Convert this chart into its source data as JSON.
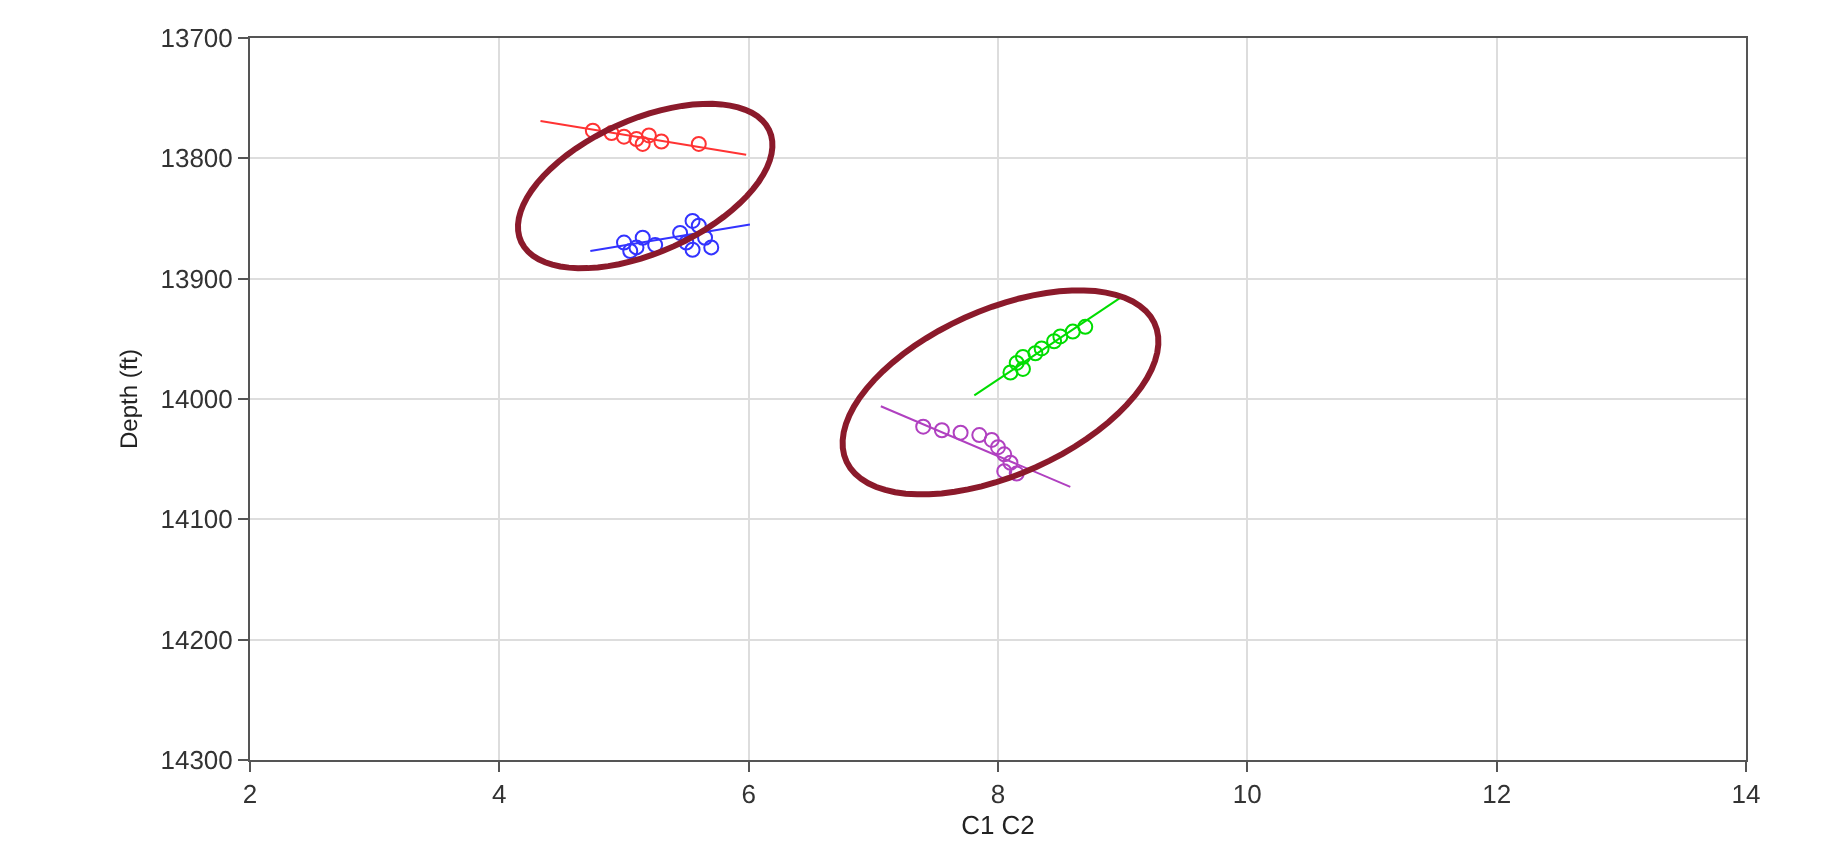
{
  "chart_data": {
    "type": "scatter",
    "xlabel": "C1 C2",
    "ylabel": "Depth (ft)",
    "xlim": [
      2,
      14
    ],
    "xticks": [
      2,
      4,
      6,
      8,
      10,
      12,
      14
    ],
    "ylim": [
      14300,
      13700
    ],
    "yticks": [
      13700,
      13800,
      13900,
      14000,
      14100,
      14200,
      14300
    ],
    "grid": true,
    "series": [
      {
        "marker": "circle",
        "color": "#ff3333",
        "x": [
          4.75,
          4.9,
          5.0,
          5.1,
          5.2,
          5.3,
          5.15,
          5.6
        ],
        "values": [
          13777,
          13779,
          13782,
          13784,
          13781,
          13786,
          13788,
          13788
        ]
      },
      {
        "marker": "circle",
        "color": "#3333ff",
        "x": [
          5.0,
          5.05,
          5.15,
          5.25,
          5.1,
          5.45,
          5.5,
          5.55,
          5.6,
          5.65,
          5.7,
          5.55
        ],
        "values": [
          13870,
          13877,
          13866,
          13872,
          13874,
          13862,
          13870,
          13852,
          13856,
          13866,
          13874,
          13876
        ]
      },
      {
        "marker": "circle",
        "color": "#00dd00",
        "x": [
          8.1,
          8.15,
          8.2,
          8.3,
          8.35,
          8.45,
          8.5,
          8.6,
          8.7,
          8.2
        ],
        "values": [
          13978,
          13970,
          13965,
          13962,
          13958,
          13952,
          13948,
          13944,
          13940,
          13975
        ]
      },
      {
        "marker": "circle",
        "color": "#b040c0",
        "x": [
          7.4,
          7.55,
          7.7,
          7.85,
          7.95,
          8.0,
          8.05,
          8.1,
          8.05,
          8.15
        ],
        "values": [
          14023,
          14026,
          14028,
          14030,
          14034,
          14040,
          14046,
          14053,
          14060,
          14062
        ]
      },
      {
        "type": "line",
        "marker": "none",
        "color": "#ff3333",
        "x": [
          4.33,
          5.98
        ],
        "values": [
          13769,
          13797
        ]
      },
      {
        "type": "line",
        "marker": "none",
        "color": "#3333ff",
        "x": [
          4.73,
          6.01
        ],
        "values": [
          13877,
          13855
        ]
      },
      {
        "type": "line",
        "marker": "none",
        "color": "#00dd00",
        "x": [
          7.81,
          8.98
        ],
        "values": [
          13997,
          13916
        ]
      },
      {
        "type": "line",
        "marker": "none",
        "color": "#b040c0",
        "x": [
          7.06,
          8.58
        ],
        "values": [
          14006,
          14073
        ]
      }
    ]
  }
}
